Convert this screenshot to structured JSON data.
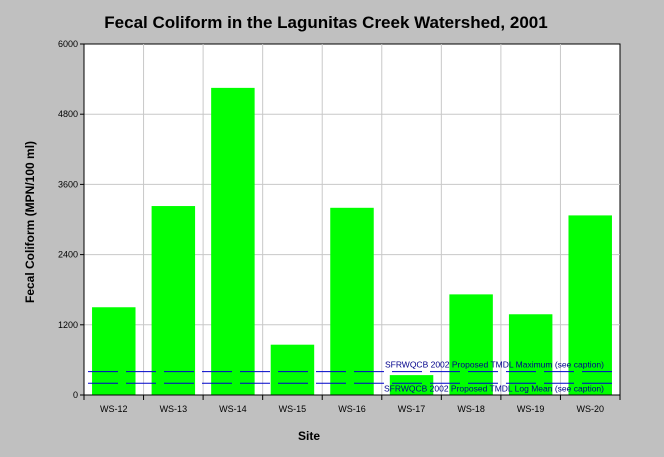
{
  "chart_data": {
    "type": "bar",
    "title": "Fecal Coliform in the Lagunitas Creek Watershed, 2001",
    "xlabel": "Site",
    "ylabel": "Fecal Coliform (MPN/100 ml)",
    "categories": [
      "WS-12",
      "WS-13",
      "WS-14",
      "WS-15",
      "WS-16",
      "WS-17",
      "WS-18",
      "WS-19",
      "WS-20"
    ],
    "values": [
      1500,
      3230,
      5250,
      860,
      3200,
      340,
      1720,
      1380,
      3070
    ],
    "ylim": [
      0,
      6000
    ],
    "yticks": [
      0,
      1200,
      2400,
      3600,
      4800,
      6000
    ],
    "grid": true,
    "bar_color": "#00ff00",
    "reference_lines": [
      {
        "label": "SFRWQCB 2002 Proposed TMDL Maximum (see caption)",
        "value": 400,
        "color": "#0000cc"
      },
      {
        "label": "SFRWQCB 2002 Proposed TMDL Log Mean (see caption)",
        "value": 200,
        "color": "#0000cc"
      }
    ]
  }
}
